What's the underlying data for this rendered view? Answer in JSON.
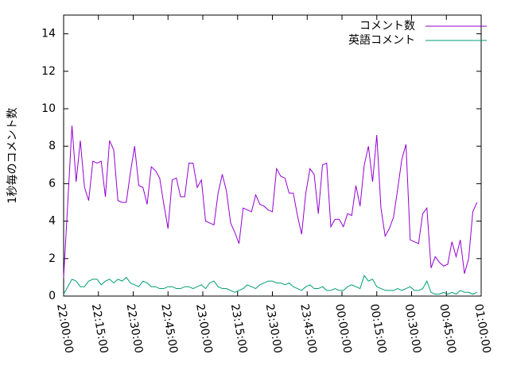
{
  "chart_data": {
    "type": "line",
    "ylabel": "1秒毎のコメント数",
    "x": [
      0,
      1.8,
      3.6,
      5.4,
      7.2,
      9,
      10.8,
      12.6,
      14.4,
      16.2,
      18,
      19.8,
      21.6,
      23.4,
      25.2,
      27,
      28.8,
      30.6,
      32.4,
      34.2,
      36,
      37.8,
      39.6,
      41.4,
      43.2,
      45,
      46.8,
      48.6,
      50.4,
      52.2,
      54,
      55.8,
      57.6,
      59.4,
      61.2,
      63,
      64.8,
      66.6,
      68.4,
      70.2,
      72,
      73.8,
      75.6,
      77.4,
      79.2,
      81,
      82.8,
      84.6,
      86.4,
      88.2,
      90,
      91.8,
      93.6,
      95.4,
      97.2,
      99,
      100.8,
      102.6,
      104.4,
      106.2,
      108,
      109.8,
      111.6,
      113.4,
      115.2,
      117,
      118.8,
      120.6,
      122.4,
      124.2,
      126,
      127.8,
      129.6,
      131.4,
      133.2,
      135,
      136.8,
      138.6,
      140.4,
      142.2,
      144,
      145.8,
      147.6,
      149.4,
      151.2,
      153,
      154.8,
      156.6,
      158.4,
      160.2,
      162,
      163.8,
      165.6,
      167.4,
      169.2,
      171,
      172.8,
      174.6,
      176.4,
      178.2
    ],
    "series": [
      {
        "name": "コメント数",
        "color": "#9400d3",
        "values": [
          1.0,
          5,
          9.1,
          6.1,
          8.3,
          5.8,
          5.1,
          7.2,
          7.1,
          7.2,
          5.3,
          8.3,
          7.8,
          5.1,
          5.0,
          5.0,
          6.6,
          8.0,
          5.9,
          5.8,
          4.9,
          6.9,
          6.7,
          6.3,
          4.9,
          3.6,
          6.2,
          6.3,
          5.3,
          5.3,
          7.1,
          7.1,
          5.8,
          6.2,
          4.0,
          3.9,
          3.8,
          5.5,
          6.5,
          5.6,
          3.9,
          3.4,
          2.8,
          4.7,
          4.6,
          4.5,
          5.4,
          4.9,
          4.8,
          4.6,
          4.5,
          6.8,
          6.4,
          6.3,
          5.5,
          5.5,
          4.3,
          3.3,
          5.5,
          6.8,
          6.5,
          4.4,
          7.0,
          7.1,
          3.7,
          4.1,
          4.1,
          3.7,
          4.4,
          4.3,
          5.9,
          4.8,
          7.0,
          8.0,
          6.1,
          8.6,
          4.7,
          3.2,
          3.6,
          4.2,
          5.7,
          7.3,
          8.1,
          3.0,
          2.9,
          2.8,
          4.4,
          4.7,
          1.5,
          2.1,
          1.8,
          1.6,
          1.7,
          2.9,
          2.1,
          3.0,
          1.2,
          2.0,
          4.5,
          5.0
        ]
      },
      {
        "name": "英語コメント",
        "color": "#009e73",
        "values": [
          0.1,
          0.5,
          0.9,
          0.8,
          0.5,
          0.5,
          0.8,
          0.9,
          0.9,
          0.6,
          0.8,
          0.9,
          0.7,
          0.9,
          0.8,
          1.0,
          0.7,
          0.6,
          0.5,
          0.8,
          0.7,
          0.5,
          0.5,
          0.4,
          0.4,
          0.5,
          0.5,
          0.4,
          0.4,
          0.5,
          0.5,
          0.4,
          0.5,
          0.6,
          0.4,
          0.7,
          0.8,
          0.5,
          0.4,
          0.4,
          0.3,
          0.2,
          0.3,
          0.4,
          0.6,
          0.5,
          0.4,
          0.6,
          0.7,
          0.8,
          0.8,
          0.7,
          0.7,
          0.6,
          0.7,
          0.5,
          0.4,
          0.3,
          0.5,
          0.6,
          0.4,
          0.4,
          0.5,
          0.3,
          0.3,
          0.4,
          0.3,
          0.3,
          0.5,
          0.6,
          0.5,
          0.4,
          1.1,
          0.8,
          0.9,
          0.5,
          0.4,
          0.3,
          0.3,
          0.3,
          0.4,
          0.3,
          0.4,
          0.5,
          0.3,
          0.3,
          0.4,
          0.8,
          0.2,
          0.1,
          0.1,
          0.2,
          0.1,
          0.2,
          0.1,
          0.3,
          0.2,
          0.2,
          0.1,
          0.2
        ]
      }
    ],
    "xlim": [
      0,
      180
    ],
    "xticks": [
      {
        "value": 0,
        "label": "22:00:00"
      },
      {
        "value": 15,
        "label": "22:15:00"
      },
      {
        "value": 30,
        "label": "22:30:00"
      },
      {
        "value": 45,
        "label": "22:45:00"
      },
      {
        "value": 60,
        "label": "23:00:00"
      },
      {
        "value": 75,
        "label": "23:15:00"
      },
      {
        "value": 90,
        "label": "23:30:00"
      },
      {
        "value": 105,
        "label": "23:45:00"
      },
      {
        "value": 120,
        "label": "00:00:00"
      },
      {
        "value": 135,
        "label": "00:15:00"
      },
      {
        "value": 150,
        "label": "00:30:00"
      },
      {
        "value": 165,
        "label": "00:45:00"
      },
      {
        "value": 180,
        "label": "01:00:00"
      }
    ],
    "ylim": [
      0,
      15
    ],
    "yticks": [
      0,
      2,
      4,
      6,
      8,
      10,
      12,
      14
    ],
    "legend": "upper right"
  }
}
